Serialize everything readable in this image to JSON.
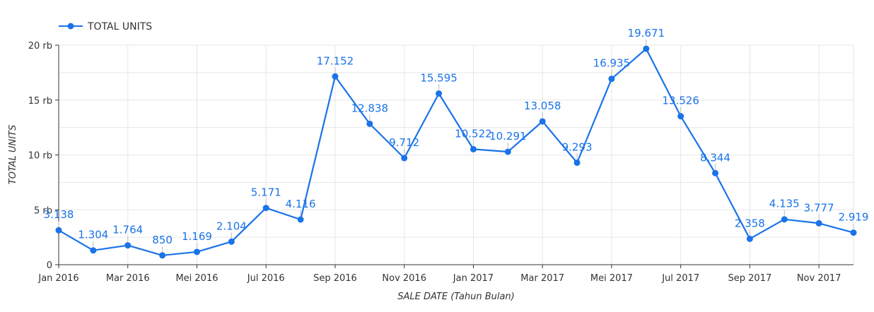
{
  "legend": {
    "label": "TOTAL UNITS"
  },
  "colors": {
    "series": "#1a73e8",
    "grid": "#e6e6e6",
    "axis": "#333333",
    "text": "#333333"
  },
  "chart_data": {
    "type": "line",
    "x": [
      "Jan 2016",
      "Feb 2016",
      "Mar 2016",
      "Apr 2016",
      "Mei 2016",
      "Jun 2016",
      "Jul 2016",
      "Aug 2016",
      "Sep 2016",
      "Oct 2016",
      "Nov 2016",
      "Dec 2016",
      "Jan 2017",
      "Feb 2017",
      "Mar 2017",
      "Apr 2017",
      "Mei 2017",
      "Jun 2017",
      "Jul 2017",
      "Aug 2017",
      "Sep 2017",
      "Oct 2017",
      "Nov 2017",
      "Dec 2017"
    ],
    "series": [
      {
        "name": "TOTAL UNITS",
        "values": [
          3138,
          1304,
          1764,
          850,
          1169,
          2104,
          5171,
          4116,
          17152,
          12838,
          9712,
          15595,
          10522,
          10291,
          13058,
          9293,
          16935,
          19671,
          13526,
          8344,
          2358,
          4135,
          3777,
          2919
        ],
        "labels": [
          "3.138",
          "1.304",
          "1.764",
          "850",
          "1.169",
          "2.104",
          "5.171",
          "4.116",
          "17.152",
          "12.838",
          "9.712",
          "15.595",
          "10.522",
          "10.291",
          "13.058",
          "9.293",
          "16.935",
          "19.671",
          "13.526",
          "8.344",
          "2.358",
          "4.135",
          "3.777",
          "2.919"
        ]
      }
    ],
    "xtick_labels": [
      "Jan 2016",
      "",
      "Mar 2016",
      "",
      "Mei 2016",
      "",
      "Jul 2016",
      "",
      "Sep 2016",
      "",
      "Nov 2016",
      "",
      "Jan 2017",
      "",
      "Mar 2017",
      "",
      "Mei 2017",
      "",
      "Jul 2017",
      "",
      "Sep 2017",
      "",
      "Nov 2017",
      ""
    ],
    "yticks": [
      0,
      5000,
      10000,
      15000,
      20000
    ],
    "ytick_labels": [
      "0",
      "5 rb",
      "10 rb",
      "15 rb",
      "20 rb"
    ],
    "xlabel": "SALE DATE (Tahun Bulan)",
    "ylabel": "TOTAL UNITS",
    "ylim": [
      0,
      20000
    ],
    "grid": true,
    "legend_position": "top-left"
  }
}
